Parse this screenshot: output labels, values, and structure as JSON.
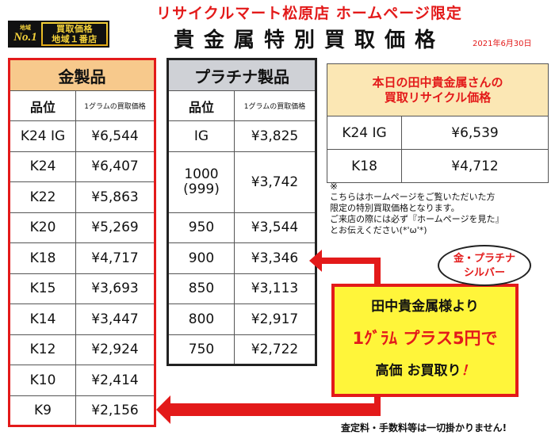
{
  "badge": {
    "small": "地域",
    "no1": "No.1",
    "line1": "買取価格",
    "line2": "地域１番店"
  },
  "header": {
    "shop": "リサイクルマート松原店 ホームページ限定",
    "title": "貴金属特別買取価格",
    "date": "2021年6月30日"
  },
  "gold": {
    "title": "金製品",
    "col_grade": "品位",
    "col_price": "1グラムの買取価格",
    "rows": [
      {
        "grade": "K24 IG",
        "price": "¥6,544"
      },
      {
        "grade": "K24",
        "price": "¥6,407"
      },
      {
        "grade": "K22",
        "price": "¥5,863"
      },
      {
        "grade": "K20",
        "price": "¥5,269"
      },
      {
        "grade": "K18",
        "price": "¥4,717"
      },
      {
        "grade": "K15",
        "price": "¥3,693"
      },
      {
        "grade": "K14",
        "price": "¥3,447"
      },
      {
        "grade": "K12",
        "price": "¥2,924"
      },
      {
        "grade": "K10",
        "price": "¥2,414"
      },
      {
        "grade": "K9",
        "price": "¥2,156"
      }
    ]
  },
  "platinum": {
    "title": "プラチナ製品",
    "col_grade": "品位",
    "col_price": "1グラムの買取価格",
    "rows": [
      {
        "grade": "IG",
        "price": "¥3,825"
      },
      {
        "grade": "1000\n(999)",
        "price": "¥3,742"
      },
      {
        "grade": "950",
        "price": "¥3,544"
      },
      {
        "grade": "900",
        "price": "¥3,346"
      },
      {
        "grade": "850",
        "price": "¥3,113"
      },
      {
        "grade": "800",
        "price": "¥2,917"
      },
      {
        "grade": "750",
        "price": "¥2,722"
      }
    ]
  },
  "tanaka": {
    "title_line1": "本日の田中貴金属さんの",
    "title_line2": "買取リサイクル価格",
    "rows": [
      {
        "grade": "K24 IG",
        "price": "¥6,539"
      },
      {
        "grade": "K18",
        "price": "¥4,712"
      }
    ]
  },
  "note": {
    "mark": "※",
    "line1": "こちらはホームページをご覧いただいた方",
    "line2": "限定の特別買取価格となります。",
    "line3": "ご来店の際には必ず『ホームページを見た』",
    "line4": "とお伝えください(*'ω'*)"
  },
  "bubble": {
    "line1": "金・プラチナ",
    "line2": "シルバー"
  },
  "promo": {
    "line1": "田中貴金属様より",
    "line2": "1ｸﾞﾗﾑ プラス5円で",
    "line3a": "高価 お買取り",
    "line3b": "！"
  },
  "footer": {
    "text": "査定料・手数料等は一切掛かりません!"
  },
  "colors": {
    "accent_red": "#e31a1a",
    "gold_header": "#f7c98c",
    "platinum_header": "#cfd1d6",
    "promo_yellow": "#fff53a"
  }
}
